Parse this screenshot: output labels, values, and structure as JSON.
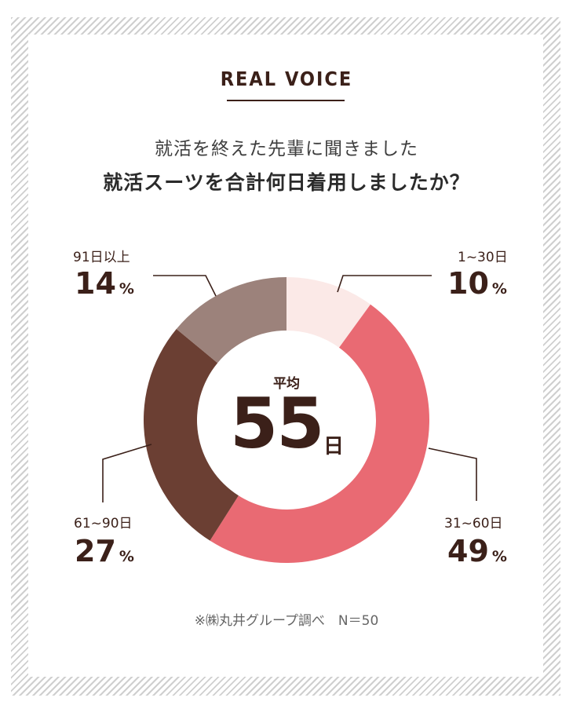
{
  "header": {
    "tag": "REAL VOICE",
    "subtitle": "就活を終えた先輩に聞きました",
    "title": "就活スーツを合計何日着用しましたか？"
  },
  "center": {
    "label": "平均",
    "value": "55",
    "unit": "日"
  },
  "source": "※㈱丸井グループ調べ　N＝50",
  "labels": [
    {
      "category": "1~30日",
      "percent": "10",
      "unit": "%"
    },
    {
      "category": "31~60日",
      "percent": "49",
      "unit": "%"
    },
    {
      "category": "61~90日",
      "percent": "27",
      "unit": "%"
    },
    {
      "category": "91日以上",
      "percent": "14",
      "unit": "%"
    }
  ],
  "chart_data": {
    "type": "pie",
    "donut": true,
    "categories": [
      "1~30日",
      "31~60日",
      "61~90日",
      "91日以上"
    ],
    "values": [
      10,
      49,
      27,
      14
    ],
    "colors": [
      "#fbe9e7",
      "#e96a73",
      "#6b3f33",
      "#9c827b"
    ],
    "title": "就活スーツを合計何日着用しましたか？",
    "center_text": "平均 55日"
  }
}
